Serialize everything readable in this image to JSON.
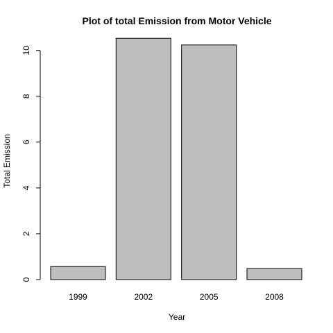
{
  "chart_data": {
    "type": "bar",
    "title": "Plot of total Emission from Motor Vehicle",
    "xlabel": "Year",
    "ylabel": "Total Emission",
    "categories": [
      "1999",
      "2002",
      "2005",
      "2008"
    ],
    "values": [
      0.57,
      10.53,
      10.24,
      0.48
    ],
    "ylim": [
      0,
      10.9
    ],
    "yticks": [
      0,
      2,
      4,
      6,
      8,
      10
    ],
    "grid": false,
    "colors": {
      "bar_fill": "#bebebe",
      "bar_stroke": "#000000"
    }
  }
}
